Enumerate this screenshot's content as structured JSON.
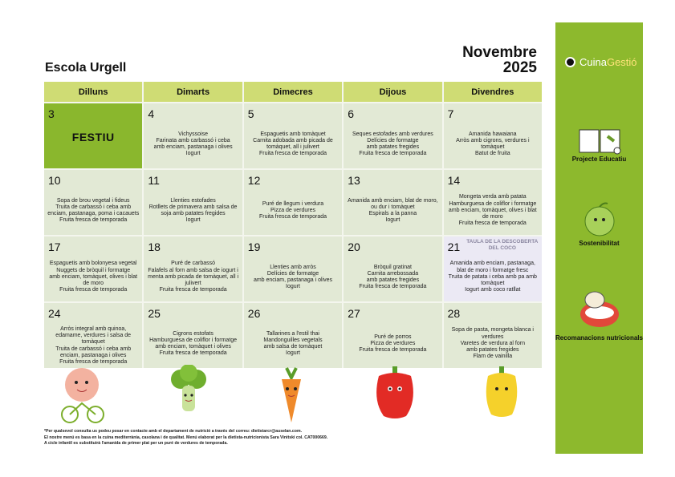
{
  "school": "Escola Urgell",
  "month": "Novembre",
  "year": "2025",
  "brand": {
    "part1": "Cuina",
    "part2": "Gestió"
  },
  "colors": {
    "sidebar": "#8db92d",
    "header": "#cfdc74",
    "cell": "#e2e9d5",
    "holiday": "#8ab72d",
    "special": "#ebe9f4"
  },
  "days": [
    "Dilluns",
    "Dimarts",
    "Dimecres",
    "Dijous",
    "Divendres"
  ],
  "weeks": [
    [
      {
        "n": "3",
        "festiu": "FESTIU",
        "items": []
      },
      {
        "n": "4",
        "items": [
          "Vichyssoise",
          "Farinata amb carbassó i ceba",
          "amb enciam, pastanaga i olives",
          "Iogurt"
        ]
      },
      {
        "n": "5",
        "items": [
          "Espaguetis amb tomàquet",
          "Carnita adobada amb picada de tomàquet, all i julivert",
          "Fruita fresca de temporada"
        ]
      },
      {
        "n": "6",
        "items": [
          "Seques estofades amb verdures",
          "Delícies de formatge",
          "amb patates fregides",
          "Fruita fresca de temporada"
        ]
      },
      {
        "n": "7",
        "items": [
          "Amanida hawaiana",
          "Arròs amb cigrons, verdures i tomàquet",
          "Batut de fruita"
        ]
      }
    ],
    [
      {
        "n": "10",
        "items": [
          "Sopa de brou vegetal i fideus",
          "Truita de carbassó i ceba amb enciam, pastanaga, poma i cacauets",
          "Fruita fresca de temporada"
        ]
      },
      {
        "n": "11",
        "items": [
          "Llenties estofades",
          "Rotllets de primavera amb salsa de soja amb patates fregides",
          "Iogurt"
        ]
      },
      {
        "n": "12",
        "items": [
          "Puré de llegum i verdura",
          "Pizza de verdures",
          "Fruita fresca de temporada"
        ]
      },
      {
        "n": "13",
        "items": [
          "Amanida amb enciam, blat de moro, ou dur i tomàquet",
          "Espirals a la panna",
          "Iogurt"
        ]
      },
      {
        "n": "14",
        "items": [
          "Mongeta verda amb patata",
          "Hamburguesa de coliflor i formatge",
          "amb enciam, tomàquet, olives i blat de moro",
          "Fruita fresca de temporada"
        ]
      }
    ],
    [
      {
        "n": "17",
        "items": [
          "Espaguetis amb bolonyesa vegetal",
          "Nuggets de bròquil i formatge",
          "amb enciam, tomàquet, olives i blat de moro",
          "Fruita fresca de temporada"
        ]
      },
      {
        "n": "18",
        "items": [
          "Puré de carbassó",
          "Falafels al forn amb salsa de iogurt i menta amb picada de tomàquet, all i julivert",
          "Fruita fresca de temporada"
        ]
      },
      {
        "n": "19",
        "items": [
          "Llenties amb arròs",
          "Delícies de formatge",
          "amb enciam, pastanaga i olives",
          "Iogurt"
        ]
      },
      {
        "n": "20",
        "items": [
          "Bròquil gratinat",
          "Carnita arrebossada",
          "amb patates fregides",
          "Fruita fresca de temporada"
        ]
      },
      {
        "n": "21",
        "tag": "TAULA DE LA DESCOBERTA DEL COCO",
        "items": [
          "Amanida amb enciam, pastanaga, blat de moro i formatge fresc",
          "Truita de patata i ceba amb pa amb tomàquet",
          "Iogurt amb coco ratllat"
        ]
      }
    ],
    [
      {
        "n": "24",
        "items": [
          "Arròs integral amb quinoa, edamame, verdures i salsa de tomàquet",
          "Truita de carbassó i ceba amb enciam, pastanaga i olives",
          "Fruita fresca de temporada"
        ]
      },
      {
        "n": "25",
        "items": [
          "Cigrons estofats",
          "Hamburguesa de coliflor i formatge",
          "amb enciam, tomàquet i olives",
          "Fruita fresca de temporada"
        ]
      },
      {
        "n": "26",
        "items": [
          "Tallarines a l'estil thai",
          "Mandonguilles vegetals",
          "amb salsa de tomàquet",
          "Iogurt"
        ]
      },
      {
        "n": "27",
        "items": [
          "Puré de porros",
          "Pizza de verdures",
          "Fruita fresca de temporada"
        ]
      },
      {
        "n": "28",
        "items": [
          "Sopa de pasta, mongeta blanca i verdures",
          "Varetes de verdura al forn",
          "amb patates fregides",
          "Flam de vainilla"
        ]
      }
    ]
  ],
  "sidebar": [
    {
      "label": "Projecte Educatiu",
      "icon": "book-icon"
    },
    {
      "label": "Sostenibilitat",
      "icon": "apple-icon"
    },
    {
      "label": "Recomanacions nutricionals",
      "icon": "mouth-icon"
    }
  ],
  "footer": [
    "*Per qualsevol consulta us podeu posar en contacte amb el departament de nutrició a través del correu: dietistarcr@auselan.com.",
    "El nostre menú es basa en la cuina mediterrània, casolana i de qualitat. Menú elaborat per la dietista-nutricionista Sara Vinitski col. CAT000669.",
    "A cicle infantil es substituirà l'amanida de primer plat per un puré de verdures de temporada."
  ]
}
